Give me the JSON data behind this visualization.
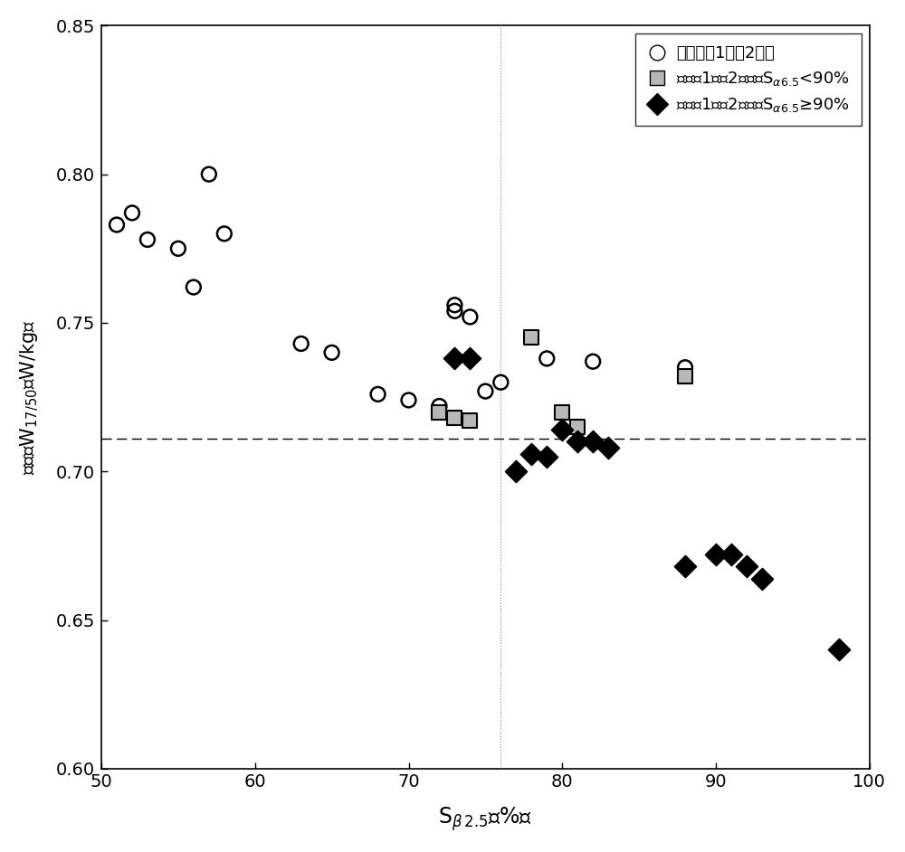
{
  "circles_x": [
    51,
    52,
    53,
    55,
    57,
    58,
    56,
    63,
    65,
    68,
    70,
    72,
    73,
    73,
    74,
    75,
    76,
    79,
    82,
    88
  ],
  "circles_y": [
    0.783,
    0.787,
    0.778,
    0.775,
    0.8,
    0.78,
    0.762,
    0.743,
    0.74,
    0.726,
    0.724,
    0.722,
    0.756,
    0.754,
    0.752,
    0.727,
    0.73,
    0.738,
    0.737,
    0.735
  ],
  "squares_x": [
    72,
    73,
    74,
    78,
    80,
    81,
    88
  ],
  "squares_y": [
    0.72,
    0.718,
    0.717,
    0.745,
    0.72,
    0.715,
    0.732
  ],
  "diamonds_x": [
    73,
    74,
    77,
    78,
    79,
    80,
    81,
    82,
    83,
    88,
    90,
    91,
    92,
    93,
    98
  ],
  "diamonds_y": [
    0.738,
    0.738,
    0.7,
    0.706,
    0.705,
    0.714,
    0.71,
    0.71,
    0.708,
    0.668,
    0.672,
    0.672,
    0.668,
    0.664,
    0.64
  ],
  "vline_x": 76,
  "hline_y": 0.711,
  "xlim": [
    50,
    100
  ],
  "ylim": [
    0.6,
    0.85
  ],
  "xticks": [
    50,
    60,
    70,
    80,
    90,
    100
  ],
  "yticks": [
    0.6,
    0.65,
    0.7,
    0.75,
    0.8,
    0.85
  ],
  "legend1": "不満足（1）（2）式",
  "legend2_pre": "満足（1）（2）式，",
  "legend2_post": "<90%",
  "legend3_pre": "満足（1）（2）式，",
  "legend3_post": "≥90%",
  "background_color": "#ffffff",
  "circle_size": 130,
  "square_size": 140,
  "diamond_size": 150
}
